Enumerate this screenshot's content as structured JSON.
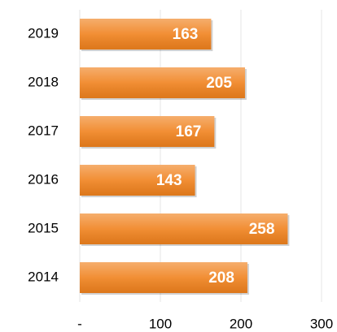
{
  "chart_data": {
    "type": "barh",
    "categories": [
      "2019",
      "2018",
      "2017",
      "2016",
      "2015",
      "2014"
    ],
    "values": [
      163,
      205,
      167,
      143,
      258,
      208
    ],
    "color": "#f0821e",
    "xlim": [
      0,
      300
    ],
    "xticks": [
      {
        "value": 0,
        "label": "-"
      },
      100,
      200,
      300
    ],
    "grid": true
  }
}
